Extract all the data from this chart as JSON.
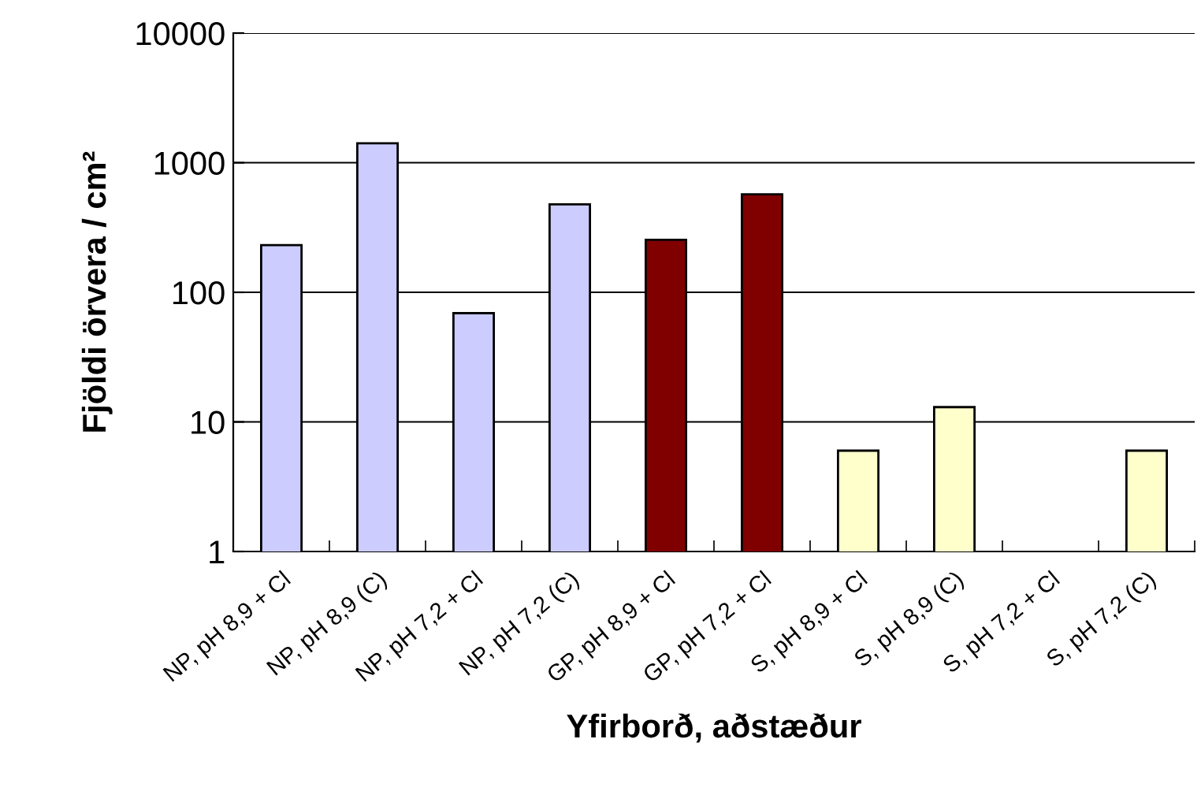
{
  "chart_data": {
    "type": "bar",
    "xlabel": "Yfirborð, aðstæður",
    "ylabel": "Fjöldi örvera / cm²",
    "categories": [
      "NP, pH 8,9 + Cl",
      "NP, pH 8,9 (C)",
      "NP, pH 7,2 + Cl",
      "NP, pH 7,2 (C)",
      "GP, pH 8,9 + Cl",
      "GP, pH 7,2 + Cl",
      "S, pH 8,9 + Cl",
      "S, pH 8,9 (C)",
      "S, pH 7,2 + Cl",
      "S, pH 7,2 (C)"
    ],
    "values": [
      231,
      1410,
      69,
      477,
      254,
      570,
      6,
      13,
      null,
      6
    ],
    "colors": [
      "#ccccff",
      "#ccccff",
      "#ccccff",
      "#ccccff",
      "#800000",
      "#800000",
      "#ffffcc",
      "#ffffcc",
      "#ffffcc",
      "#ffffcc"
    ],
    "log": "y",
    "ylim": [
      1,
      10000
    ],
    "yticks": [
      1,
      10,
      100,
      1000,
      10000
    ],
    "grid": "y",
    "legend": false
  }
}
